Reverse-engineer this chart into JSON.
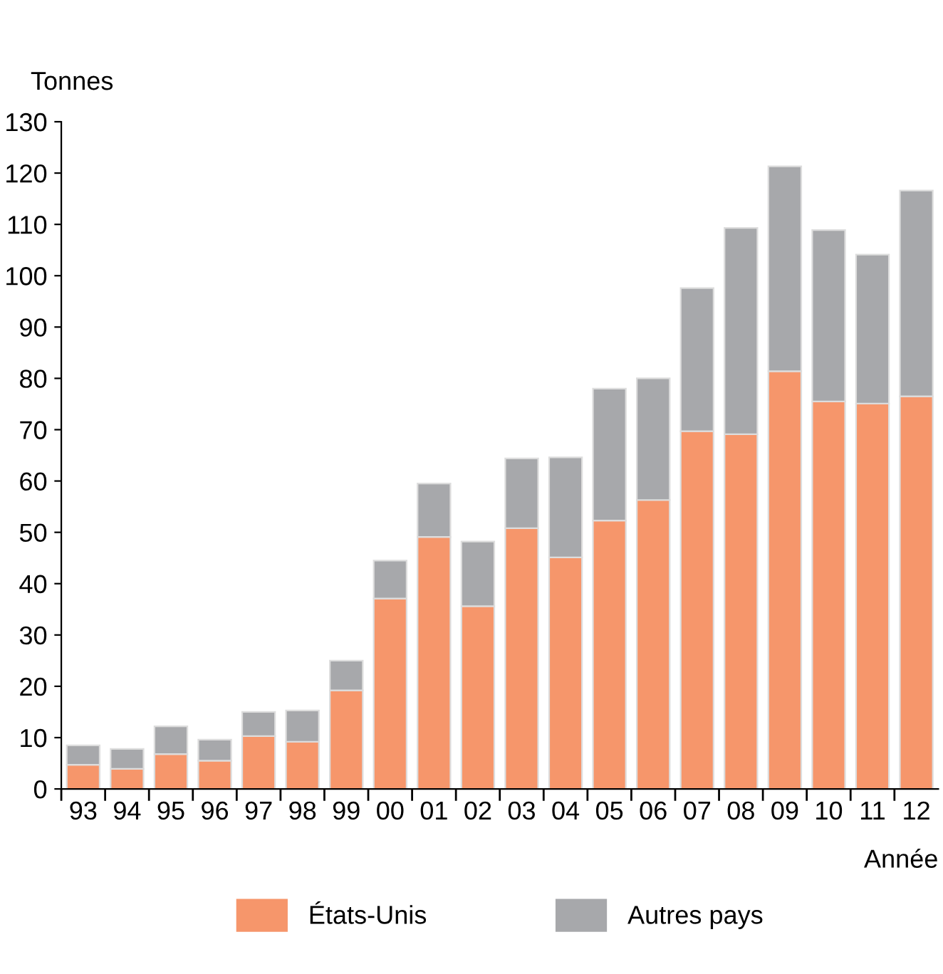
{
  "chart_data": {
    "type": "bar",
    "stacked": true,
    "xlabel": "Année",
    "ylabel": "Tonnes",
    "categories": [
      "93",
      "94",
      "95",
      "96",
      "97",
      "98",
      "99",
      "00",
      "01",
      "02",
      "03",
      "04",
      "05",
      "06",
      "07",
      "08",
      "09",
      "10",
      "11",
      "12"
    ],
    "series": [
      {
        "name": "États-Unis",
        "color": "#f6966b",
        "values": [
          4.7,
          3.9,
          6.8,
          5.5,
          10.3,
          9.2,
          19.2,
          37.1,
          49.1,
          35.6,
          50.8,
          45.1,
          52.3,
          56.3,
          69.7,
          69.1,
          81.4,
          75.5,
          75.1,
          76.5
        ]
      },
      {
        "name": "Autres pays",
        "color": "#a7a8ab",
        "values": [
          3.8,
          3.9,
          5.4,
          4.1,
          4.7,
          6.1,
          5.8,
          7.4,
          10.4,
          12.6,
          13.6,
          19.5,
          25.7,
          23.7,
          27.9,
          40.2,
          39.9,
          33.4,
          29.0,
          40.1
        ]
      }
    ],
    "ylim": [
      0,
      130
    ],
    "yticks": [
      0,
      10,
      20,
      30,
      40,
      50,
      60,
      70,
      80,
      90,
      100,
      110,
      120,
      130
    ],
    "grid": false,
    "legend": "bottom"
  }
}
